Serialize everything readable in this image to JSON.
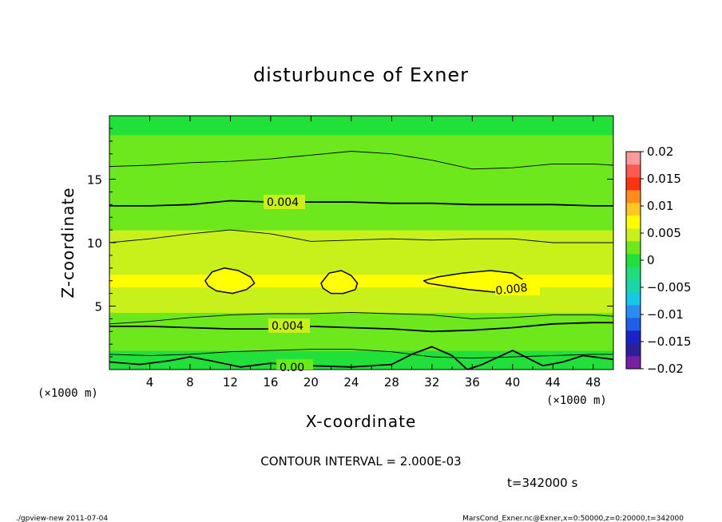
{
  "chart_data": {
    "type": "contour",
    "title": "disturbunce of Exner",
    "xlabel": "X-coordinate",
    "ylabel": "Z-coordinate",
    "x_unit": "(×1000 m)",
    "y_unit": "(×1000 m)",
    "xlim": [
      0,
      50
    ],
    "ylim": [
      0,
      20
    ],
    "x_ticks": [
      4,
      8,
      12,
      16,
      20,
      24,
      28,
      32,
      36,
      40,
      44,
      48
    ],
    "y_ticks": [
      5,
      10,
      15
    ],
    "colorbar": {
      "levels": [
        -0.02,
        -0.0175,
        -0.015,
        -0.0125,
        -0.01,
        -0.0075,
        -0.005,
        -0.0025,
        0,
        0.0025,
        0.005,
        0.0075,
        0.01,
        0.0125,
        0.015,
        0.0175,
        0.02
      ],
      "colors": [
        "#7a1fa2",
        "#2b1f9a",
        "#1a23c8",
        "#1e5ee8",
        "#2c8cf2",
        "#14c8e6",
        "#18d6a8",
        "#1ee07a",
        "#22e03a",
        "#6ce81c",
        "#c8f01a",
        "#ffff00",
        "#ffc81e",
        "#ff8c1e",
        "#ff3214",
        "#ff5a50",
        "#ff9a9a"
      ],
      "labels": [
        "0.02",
        "0.015",
        "0.01",
        "0.005",
        "0",
        "−0.005",
        "−0.01",
        "−0.015",
        "−0.02"
      ]
    },
    "contour_interval_label": "CONTOUR INTERVAL = 2.000E-03",
    "contour_labels": [
      "0.004",
      "0.008",
      "0.004",
      "0.00"
    ],
    "band_profile": [
      {
        "z": 0.0,
        "value": 0.0005
      },
      {
        "z": 0.6,
        "value": 0.0012
      },
      {
        "z": 1.5,
        "value": 0.0022
      },
      {
        "z": 2.5,
        "value": 0.0032
      },
      {
        "z": 3.5,
        "value": 0.0043
      },
      {
        "z": 4.5,
        "value": 0.0055
      },
      {
        "z": 5.5,
        "value": 0.0067
      },
      {
        "z": 6.5,
        "value": 0.0076
      },
      {
        "z": 7.5,
        "value": 0.0074
      },
      {
        "z": 8.5,
        "value": 0.0066
      },
      {
        "z": 9.5,
        "value": 0.0057
      },
      {
        "z": 11.0,
        "value": 0.005
      },
      {
        "z": 12.5,
        "value": 0.0043
      },
      {
        "z": 14.5,
        "value": 0.0036
      },
      {
        "z": 16.5,
        "value": 0.0029
      },
      {
        "z": 18.5,
        "value": 0.0024
      },
      {
        "z": 20.0,
        "value": 0.002
      }
    ],
    "contour_lines": [
      {
        "level": 0.002,
        "x": [
          0,
          4,
          8,
          12,
          16,
          20,
          24,
          28,
          32,
          36,
          40,
          44,
          48,
          50
        ],
        "z": [
          16.0,
          16.1,
          16.3,
          16.4,
          16.6,
          16.9,
          17.2,
          17.0,
          16.5,
          15.8,
          15.9,
          16.2,
          16.2,
          16.1
        ]
      },
      {
        "level": 0.004,
        "x": [
          0,
          4,
          8,
          12,
          16,
          20,
          24,
          28,
          32,
          36,
          40,
          44,
          48,
          50
        ],
        "z": [
          12.9,
          12.9,
          13.0,
          13.3,
          13.2,
          13.2,
          13.2,
          13.1,
          13.1,
          13.0,
          13.0,
          13.0,
          12.9,
          12.9
        ]
      },
      {
        "level": 0.006,
        "x": [
          0,
          4,
          8,
          12,
          16,
          20,
          24,
          28,
          32,
          36,
          40,
          44,
          48,
          50
        ],
        "z": [
          10.0,
          10.3,
          10.7,
          11.0,
          10.7,
          10.1,
          10.2,
          10.3,
          10.2,
          10.3,
          10.3,
          10.0,
          10.0,
          10.0
        ]
      },
      {
        "level": 0.006,
        "x": [
          0,
          4,
          8,
          12,
          16,
          20,
          24,
          28,
          32,
          36,
          40,
          44,
          48,
          50
        ],
        "z": [
          3.6,
          3.8,
          4.1,
          4.3,
          4.4,
          4.4,
          4.5,
          4.4,
          4.3,
          4.0,
          4.1,
          4.3,
          4.3,
          4.2
        ]
      },
      {
        "level": 0.004,
        "x": [
          0,
          4,
          8,
          12,
          16,
          20,
          24,
          28,
          32,
          36,
          40,
          44,
          48,
          50
        ],
        "z": [
          3.4,
          3.4,
          3.3,
          3.2,
          3.2,
          3.4,
          3.3,
          3.2,
          3.0,
          3.1,
          3.3,
          3.6,
          3.7,
          3.7
        ]
      },
      {
        "level": 0.002,
        "x": [
          0,
          4,
          8,
          12,
          16,
          20,
          24,
          28,
          32,
          36,
          40,
          44,
          48,
          50
        ],
        "z": [
          1.2,
          1.1,
          1.2,
          1.4,
          1.5,
          1.6,
          1.6,
          1.4,
          1.0,
          0.9,
          1.0,
          1.1,
          1.2,
          1.2
        ]
      },
      {
        "level": 0.0,
        "x": [
          0,
          3,
          6,
          8,
          10,
          13,
          16,
          20,
          24,
          28,
          30,
          32,
          34,
          35.5,
          37,
          40,
          43,
          45,
          47,
          50
        ],
        "z": [
          0.6,
          0.4,
          0.7,
          1.0,
          0.7,
          0.2,
          0.5,
          0.3,
          0.2,
          0.4,
          1.2,
          1.8,
          1.1,
          0.0,
          0.4,
          1.5,
          0.3,
          0.6,
          1.1,
          0.8
        ]
      }
    ],
    "closed_regions": [
      {
        "level": 0.008,
        "x": [
          9.5,
          10.2,
          11.4,
          12.8,
          14.0,
          14.4,
          13.6,
          12.2,
          10.6,
          9.8,
          9.5
        ],
        "z": [
          7.0,
          7.7,
          8.0,
          7.8,
          7.3,
          6.8,
          6.3,
          6.0,
          6.2,
          6.6,
          7.0
        ]
      },
      {
        "level": 0.008,
        "x": [
          21.0,
          21.8,
          23.0,
          24.0,
          24.6,
          24.4,
          23.2,
          22.0,
          21.2,
          21.0
        ],
        "z": [
          6.8,
          7.6,
          7.8,
          7.4,
          6.8,
          6.3,
          6.0,
          6.0,
          6.4,
          6.8
        ]
      },
      {
        "level": 0.008,
        "x": [
          31.2,
          32.6,
          35.0,
          37.8,
          40.0,
          41.0,
          40.4,
          38.2,
          35.6,
          33.2,
          31.6,
          31.2
        ],
        "z": [
          7.0,
          7.3,
          7.6,
          7.8,
          7.6,
          7.1,
          6.4,
          6.1,
          6.3,
          6.6,
          6.8,
          7.0
        ]
      }
    ]
  },
  "annotations": {
    "time": "t=342000 s",
    "footer_left": "./gpview-new  2011-07-04",
    "footer_right": "MarsCond_Exner.nc@Exner,x=0:50000,z=0:20000,t=342000"
  }
}
